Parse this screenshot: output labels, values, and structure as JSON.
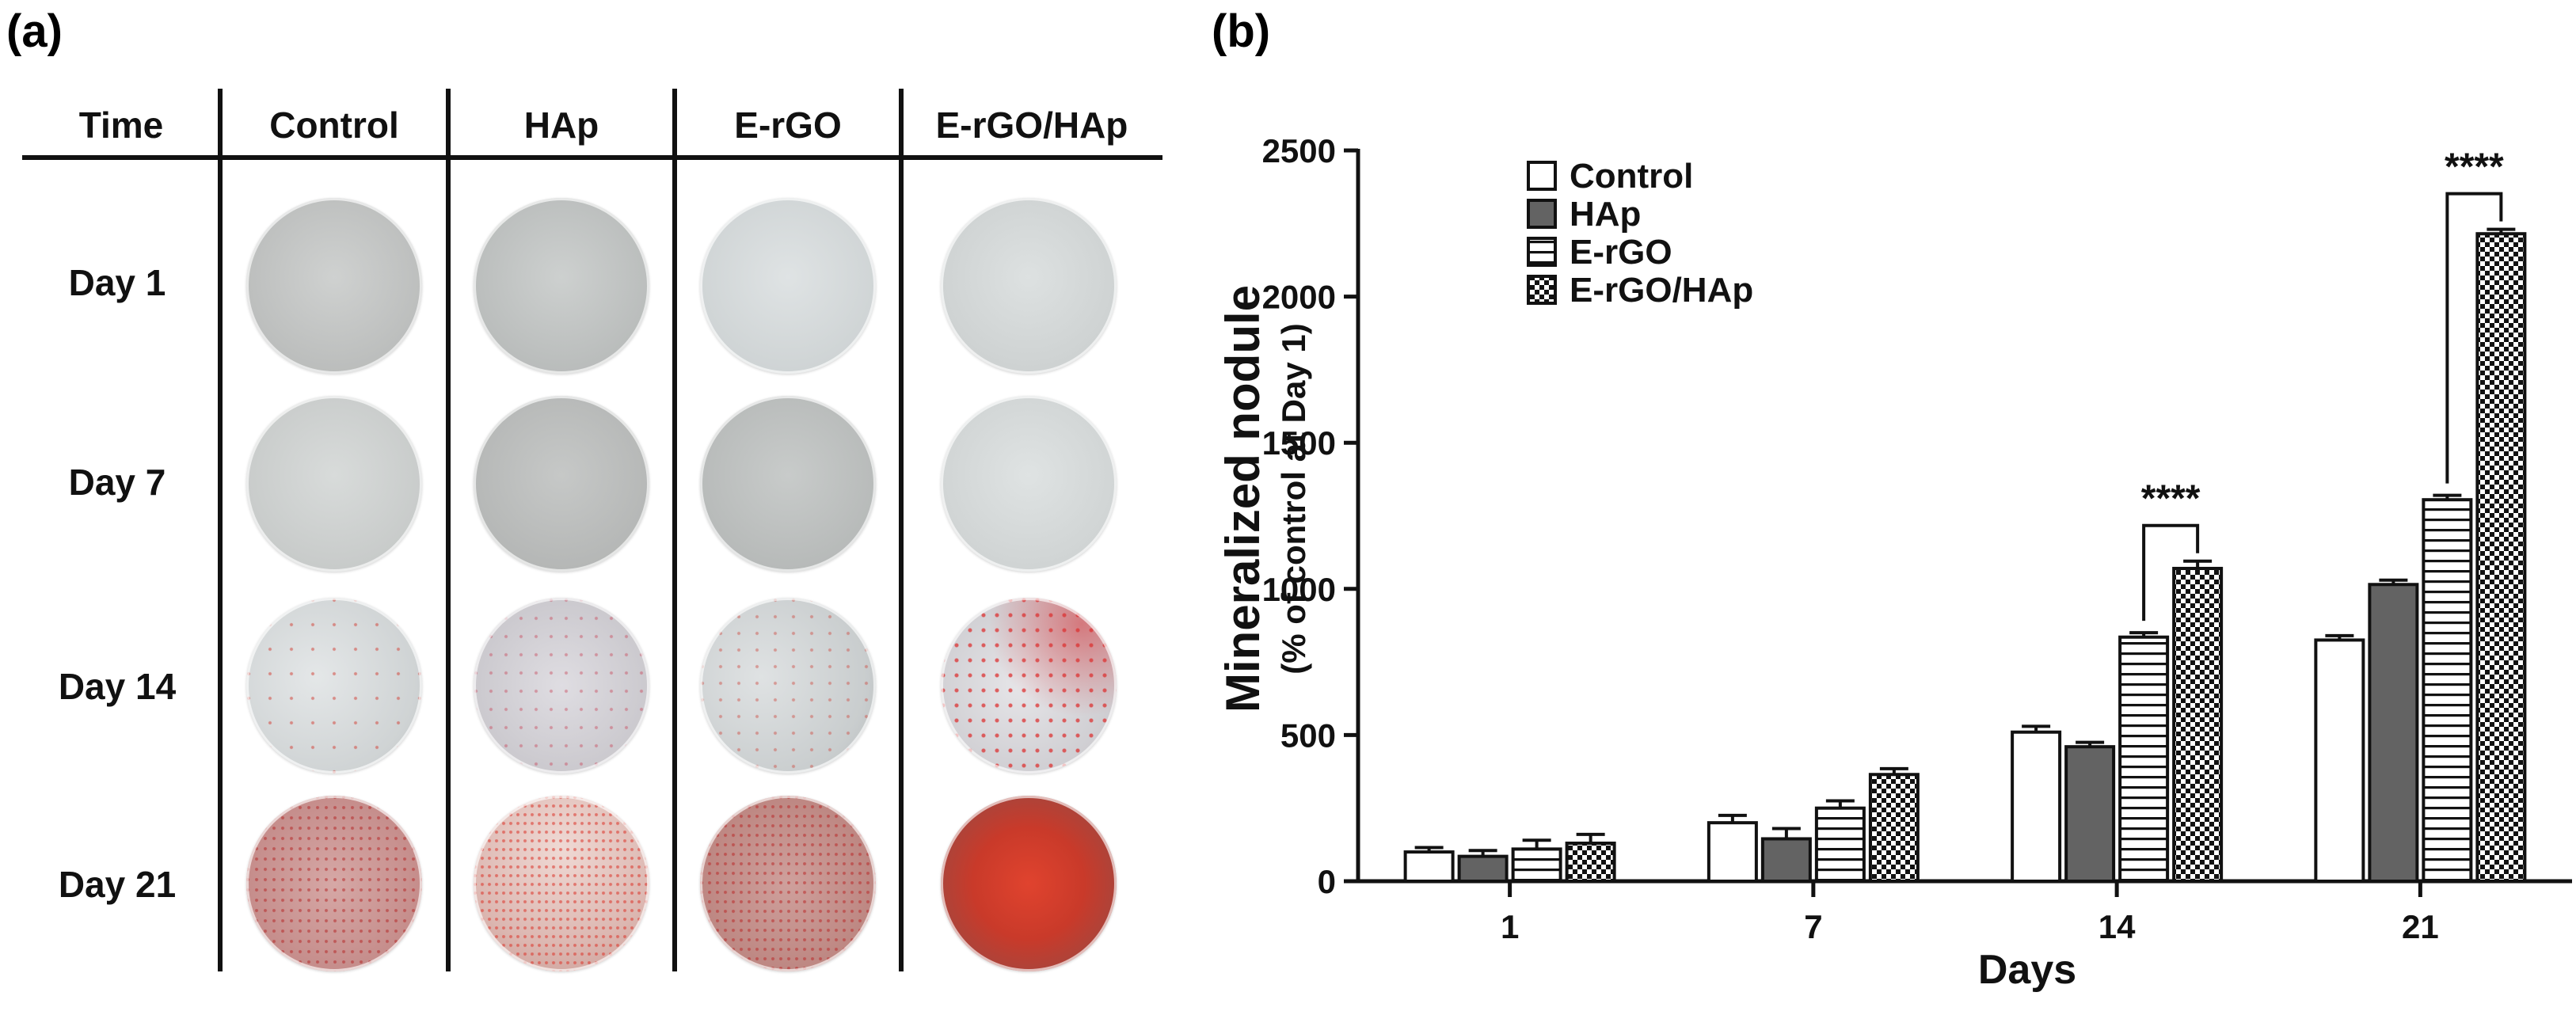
{
  "panel_a": {
    "label": "(a)",
    "headers": [
      "Time",
      "Control",
      "HAp",
      "E-rGO",
      "E-rGO/HAp"
    ],
    "rows": [
      "Day 1",
      "Day 7",
      "Day 14",
      "Day 21"
    ]
  },
  "panel_b": {
    "label": "(b)"
  },
  "colors": {
    "control": "#ffffff",
    "hap": "#636363",
    "stroke": "#111111"
  },
  "chart_data": {
    "type": "bar",
    "title": "",
    "xlabel": "Days",
    "ylabel": "Mineralized nodule",
    "ylabel_sub": "(% of control at Day 1)",
    "categories": [
      "1",
      "7",
      "14",
      "21"
    ],
    "ylim": [
      0,
      2500
    ],
    "yticks": [
      "0",
      "500",
      "1000",
      "1500",
      "2000",
      "2500"
    ],
    "legend_position": "top-left",
    "series": [
      {
        "name": "Control",
        "pattern": "white",
        "values": [
          100,
          200,
          510,
          825
        ],
        "errors": [
          15,
          25,
          20,
          15
        ]
      },
      {
        "name": "HAp",
        "pattern": "dark-gray",
        "values": [
          85,
          145,
          460,
          1015
        ],
        "errors": [
          20,
          35,
          15,
          15
        ]
      },
      {
        "name": "E-rGO",
        "pattern": "horizontal",
        "values": [
          110,
          250,
          835,
          1305
        ],
        "errors": [
          30,
          25,
          15,
          15
        ]
      },
      {
        "name": "E-rGO/HAp",
        "pattern": "checker",
        "values": [
          130,
          365,
          1070,
          2215
        ],
        "errors": [
          30,
          20,
          25,
          15
        ]
      }
    ],
    "annotations": [
      {
        "text": "****",
        "category": "14",
        "between": [
          "E-rGO",
          "E-rGO/HAp"
        ]
      },
      {
        "text": "****",
        "category": "21",
        "between": [
          "E-rGO",
          "E-rGO/HAp"
        ]
      }
    ]
  }
}
